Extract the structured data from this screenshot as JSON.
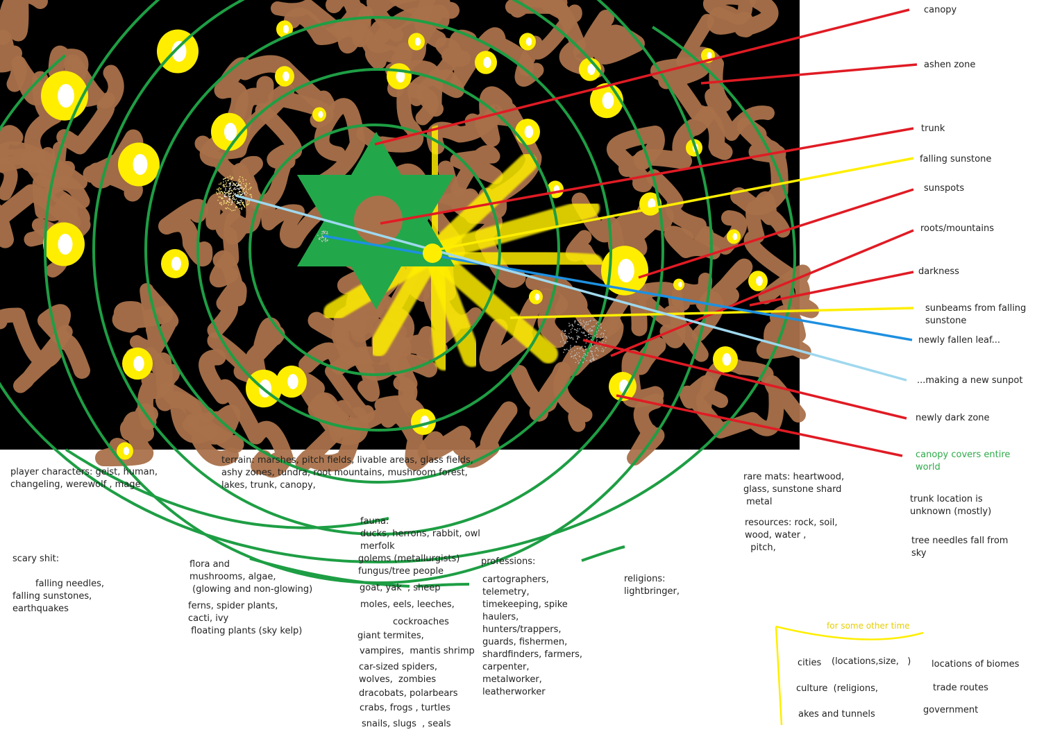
{
  "legend_labels": [
    {
      "id": "canopy",
      "text": "canopy"
    },
    {
      "id": "ashen-zone",
      "text": "ashen zone"
    },
    {
      "id": "trunk",
      "text": "trunk"
    },
    {
      "id": "falling-sunstone",
      "text": "falling sunstone"
    },
    {
      "id": "sunspots",
      "text": "sunspots"
    },
    {
      "id": "roots-mountains",
      "text": "roots/mountains"
    },
    {
      "id": "darkness",
      "text": "darkness"
    },
    {
      "id": "sunbeams",
      "text": "sunbeams from falling\nsunstone"
    },
    {
      "id": "newly-fallen-leaf",
      "text": "newly fallen leaf..."
    },
    {
      "id": "new-sunpot",
      "text": "...making a new sunpot"
    },
    {
      "id": "newly-dark-zone",
      "text": "newly dark zone"
    },
    {
      "id": "canopy-covers",
      "text": "canopy covers entire\nworld"
    }
  ],
  "notes": {
    "player_characters": "player characters: geist, human,\nchangeling, werewolf , mage",
    "terrain": "terrain: marshes, pitch fields, livable areas, glass fields,\nashy zones, tundra, root mountains, mushroom forest,\nlakes, trunk, canopy,",
    "rare_mats": "rare mats: heartwood,\nglass, sunstone shard\n metal",
    "resources": "resources: rock, soil,\nwood, water ,\n  pitch,",
    "trunk_location": "trunk location is\nunknown (mostly)",
    "tree_needles": "tree needles fall from\nsky",
    "scary_title": "scary shit:",
    "scary_body": "        falling needles,\nfalling sunstones,\nearthquakes",
    "flora_a": "flora and\nmushrooms, algae,\n (glowing and non-glowing)",
    "flora_b": "ferns, spider plants,\ncacti, ivy\n floating plants (sky kelp)",
    "fauna_title": "fauna:",
    "fauna_1": "ducks, herrons, rabbit, owl\nmerfolk",
    "fauna_2": "golems (metallurgists)\nfungus/tree people",
    "fauna_3": "goat, yak  , sheep",
    "fauna_4": "moles, eels, leeches,",
    "fauna_5": "cockroaches",
    "fauna_6": "giant termites,",
    "fauna_7": "vampires,  mantis shrimp",
    "fauna_8": "car-sized spiders,\nwolves,  zombies",
    "fauna_9": "dracobats, polarbears",
    "fauna_10": "crabs, frogs , turtles",
    "fauna_11": "snails, slugs  , seals",
    "professions": "professions:",
    "professions_list": "cartographers,\ntelemetry,\ntimekeeping, spike\nhaulers,\nhunters/trappers,\nguards, fishermen,\nshardfinders, farmers,\ncarpenter,\nmetalworker,\nleatherworker",
    "religions": "religions:\nlightbringer,"
  },
  "other_time": {
    "title": "for some other time",
    "cities": "cities",
    "locations_size": "(locations,size,   )",
    "locations_biomes": "locations of biomes",
    "culture": "culture  (religions,",
    "trade_routes": "trade routes",
    "lakes_tunnels": "akes and tunnels",
    "government": "government"
  },
  "colors": {
    "ground": "#000000",
    "root": "#a9714a",
    "ring": "#1e9e44",
    "pointer": "#e01b24",
    "sun": "#ffee00",
    "trunk_star": "#22a84a",
    "leaf_line": "#1e90e0",
    "sunpot_line": "#9fd8ee"
  }
}
